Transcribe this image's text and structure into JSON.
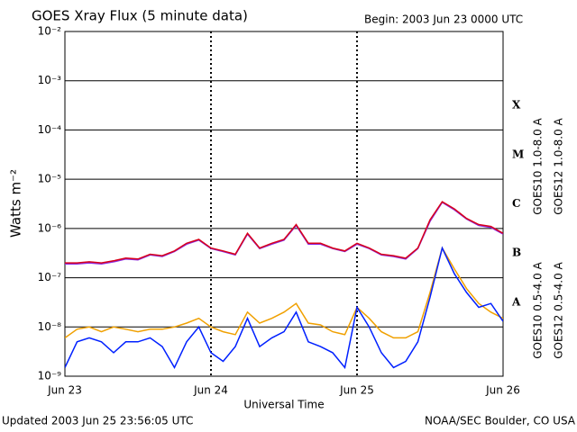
{
  "chart_data": {
    "type": "line",
    "title": "GOES Xray Flux (5 minute data)",
    "subtitle": "Begin:  2003 Jun 23 0000 UTC",
    "xlabel": "Universal Time",
    "ylabel": "Watts m⁻²",
    "footer_left": "Updated 2003 Jun 25 23:56:05 UTC",
    "footer_right": "NOAA/SEC Boulder, CO USA",
    "classes": [
      "X",
      "M",
      "C",
      "B",
      "A"
    ],
    "log_y": true,
    "grid": true,
    "legend": "right",
    "xlim": [
      0,
      72
    ],
    "xticks": [
      {
        "value": 0,
        "label": "Jun 23"
      },
      {
        "value": 24,
        "label": "Jun 24"
      },
      {
        "value": 48,
        "label": "Jun 25"
      },
      {
        "value": 72,
        "label": "Jun 26"
      }
    ],
    "ylim": [
      1e-09,
      0.01
    ],
    "yticks": [
      {
        "value": 1e-09,
        "label": "10⁻⁹"
      },
      {
        "value": 1e-08,
        "label": "10⁻⁸"
      },
      {
        "value": 1e-07,
        "label": "10⁻⁷"
      },
      {
        "value": 1e-06,
        "label": "10⁻⁶"
      },
      {
        "value": 1e-05,
        "label": "10⁻⁵"
      },
      {
        "value": 0.0001,
        "label": "10⁻⁴"
      },
      {
        "value": 0.001,
        "label": "10⁻³"
      },
      {
        "value": 0.01,
        "label": "10⁻²"
      }
    ],
    "x": [
      0,
      2,
      4,
      6,
      8,
      10,
      12,
      14,
      16,
      18,
      20,
      22,
      24,
      26,
      28,
      30,
      32,
      34,
      36,
      38,
      40,
      42,
      44,
      46,
      48,
      50,
      52,
      54,
      56,
      58,
      60,
      62,
      64,
      66,
      68,
      70,
      72
    ],
    "series": [
      {
        "name": "GOES10 1.0-8.0 A",
        "color": "#8a2be2",
        "values": [
          1.9e-07,
          1.9e-07,
          2e-07,
          1.9e-07,
          2.1e-07,
          2.4e-07,
          2.3e-07,
          2.9e-07,
          2.7e-07,
          3.4e-07,
          4.8e-07,
          5.8e-07,
          3.9e-07,
          3.4e-07,
          2.9e-07,
          7.7e-07,
          3.9e-07,
          4.8e-07,
          5.8e-07,
          1.15e-06,
          4.8e-07,
          4.8e-07,
          3.9e-07,
          3.4e-07,
          4.8e-07,
          3.9e-07,
          2.9e-07,
          2.7e-07,
          2.4e-07,
          3.9e-07,
          1.4e-06,
          3.4e-06,
          2.4e-06,
          1.55e-06,
          1.15e-06,
          1.05e-06,
          7.7e-07
        ]
      },
      {
        "name": "GOES12 1.0-8.0 A",
        "color": "#d8001a",
        "values": [
          2e-07,
          2e-07,
          2.1e-07,
          2e-07,
          2.2e-07,
          2.5e-07,
          2.4e-07,
          3e-07,
          2.8e-07,
          3.5e-07,
          5e-07,
          6e-07,
          4e-07,
          3.5e-07,
          3e-07,
          8e-07,
          4e-07,
          5e-07,
          6e-07,
          1.2e-06,
          5e-07,
          5e-07,
          4e-07,
          3.5e-07,
          5e-07,
          4e-07,
          3e-07,
          2.8e-07,
          2.5e-07,
          4e-07,
          1.5e-06,
          3.5e-06,
          2.5e-06,
          1.6e-06,
          1.2e-06,
          1.1e-06,
          8e-07
        ]
      },
      {
        "name": "GOES10 0.5-4.0 A",
        "color": "#f0a000",
        "values": [
          6e-09,
          9e-09,
          1e-08,
          8e-09,
          1e-08,
          9e-09,
          8e-09,
          9e-09,
          9e-09,
          1e-08,
          1.2e-08,
          1.5e-08,
          1e-08,
          8e-09,
          7e-09,
          2e-08,
          1.2e-08,
          1.5e-08,
          2e-08,
          3e-08,
          1.2e-08,
          1.1e-08,
          8e-09,
          7e-09,
          2.5e-08,
          1.5e-08,
          8e-09,
          6e-09,
          6e-09,
          8e-09,
          5e-08,
          4e-07,
          1.5e-07,
          6e-08,
          3e-08,
          2e-08,
          1.5e-08
        ]
      },
      {
        "name": "GOES12 0.5-4.0 A",
        "color": "#0020ff",
        "values": [
          1.5e-09,
          5e-09,
          6e-09,
          5e-09,
          3e-09,
          5e-09,
          5e-09,
          6e-09,
          4e-09,
          1.5e-09,
          5e-09,
          1e-08,
          3e-09,
          2e-09,
          4e-09,
          1.5e-08,
          4e-09,
          6e-09,
          8e-09,
          2e-08,
          5e-09,
          4e-09,
          3e-09,
          1.5e-09,
          2.5e-08,
          1e-08,
          3e-09,
          1.5e-09,
          2e-09,
          5e-09,
          4e-08,
          4e-07,
          1.2e-07,
          5e-08,
          2.5e-08,
          3e-08,
          1.3e-08
        ]
      }
    ]
  }
}
